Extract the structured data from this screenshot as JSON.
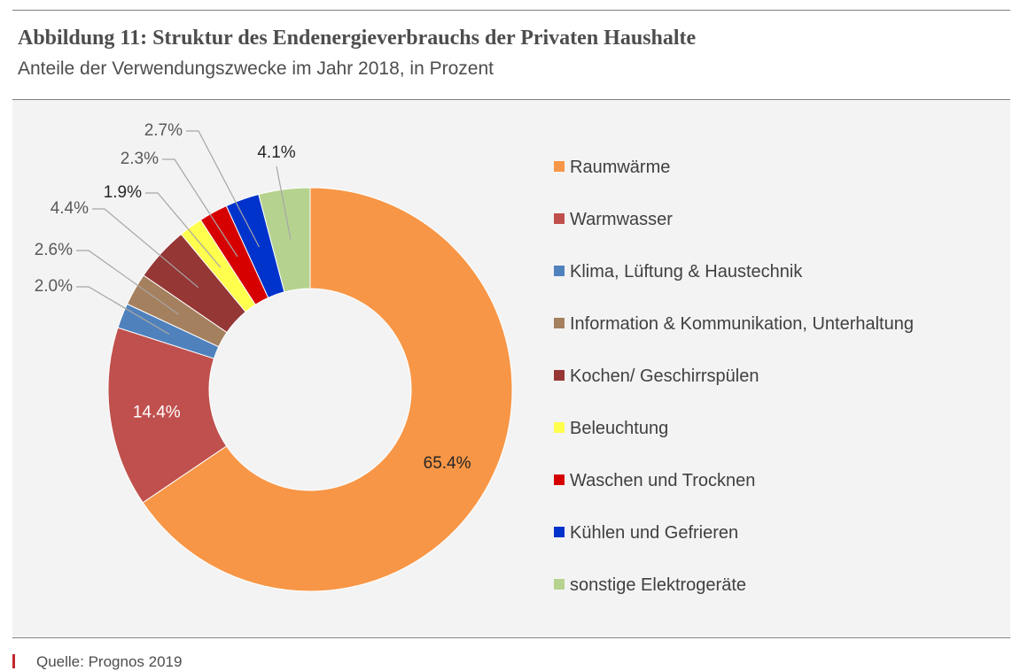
{
  "figure": {
    "title": "Abbildung 11: Struktur des Endenergieverbrauchs der Privaten Haushalte",
    "subtitle": "Anteile der Verwendungszwecke im Jahr 2018, in Prozent",
    "source": "Quelle: Prognos 2019"
  },
  "chart_data": {
    "type": "pie",
    "variant": "donut",
    "title": "Abbildung 11: Struktur des Endenergieverbrauchs der Privaten Haushalte",
    "subtitle": "Anteile der Verwendungszwecke im Jahr 2018, in Prozent",
    "legend_position": "right",
    "labels": [
      "Raumwärme",
      "Warmwasser",
      "Klima, Lüftung & Haustechnik",
      "Information & Kommunikation, Unterhaltung",
      "Kochen/ Geschirrspülen",
      "Beleuchtung",
      "Waschen und Trocknen",
      "Kühlen und Gefrieren",
      "sonstige Elektrogeräte"
    ],
    "values": [
      65.4,
      14.4,
      2.0,
      2.6,
      4.4,
      1.9,
      2.3,
      2.7,
      4.1
    ],
    "value_labels": [
      "65.4%",
      "14.4%",
      "2.0%",
      "2.6%",
      "4.4%",
      "1.9%",
      "2.3%",
      "2.7%",
      "4.1%"
    ],
    "colors": [
      "#f79646",
      "#c0504d",
      "#4f81bd",
      "#a5805e",
      "#953735",
      "#ffff4d",
      "#d60000",
      "#0033cc",
      "#b6d28f"
    ]
  }
}
